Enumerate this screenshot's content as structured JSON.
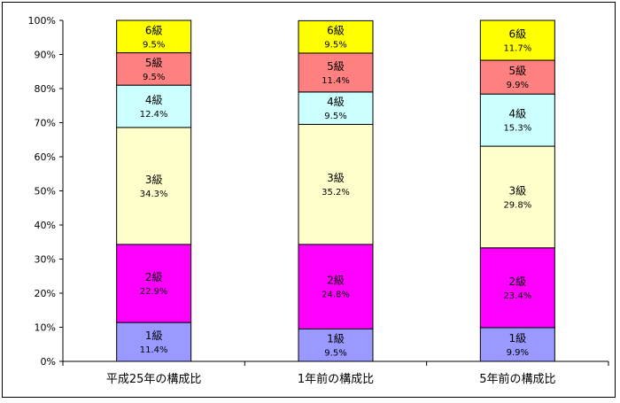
{
  "chart_data": {
    "type": "bar",
    "stacked": true,
    "percent_stacked": true,
    "categories": [
      "平成25年の構成比",
      "1年前の構成比",
      "5年前の構成比"
    ],
    "series": [
      {
        "name": "1級",
        "values": [
          11.4,
          9.5,
          9.9
        ],
        "labels": [
          "11.4%",
          "9.5%",
          "9.9%"
        ],
        "color": "#9999ff"
      },
      {
        "name": "2級",
        "values": [
          22.9,
          24.8,
          23.4
        ],
        "labels": [
          "22.9%",
          "24.8%",
          "23.4%"
        ],
        "color": "#ff00ff"
      },
      {
        "name": "3級",
        "values": [
          34.3,
          35.2,
          29.8
        ],
        "labels": [
          "34.3%",
          "35.2%",
          "29.8%"
        ],
        "color": "#ffffcc"
      },
      {
        "name": "4級",
        "values": [
          12.4,
          9.5,
          15.3
        ],
        "labels": [
          "12.4%",
          "9.5%",
          "15.3%"
        ],
        "color": "#ccffff"
      },
      {
        "name": "5級",
        "values": [
          9.5,
          11.4,
          9.9
        ],
        "labels": [
          "9.5%",
          "11.4%",
          "9.9%"
        ],
        "color": "#ff8080"
      },
      {
        "name": "6級",
        "values": [
          9.5,
          9.5,
          11.7
        ],
        "labels": [
          "9.5%",
          "9.5%",
          "11.7%"
        ],
        "color": "#ffff00"
      }
    ],
    "y_ticks": [
      "0%",
      "10%",
      "20%",
      "30%",
      "40%",
      "50%",
      "60%",
      "70%",
      "80%",
      "90%",
      "100%"
    ],
    "ylim": [
      0,
      100
    ],
    "grid": false,
    "legend": "none",
    "title": "",
    "xlabel": "",
    "ylabel": ""
  }
}
